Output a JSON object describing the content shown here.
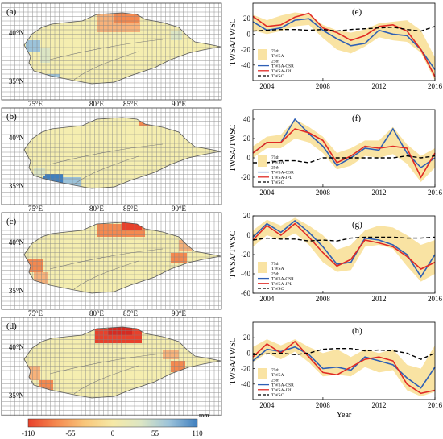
{
  "maps": {
    "panels": [
      {
        "label": "(a)",
        "kind": "a"
      },
      {
        "label": "(b)",
        "kind": "b"
      },
      {
        "label": "(c)",
        "kind": "c"
      },
      {
        "label": "(d)",
        "kind": "d"
      }
    ],
    "lat_ticks": [
      "40°N",
      "35°N"
    ],
    "lon_ticks": [
      "75°E",
      "80°E",
      "85°E",
      "90°E"
    ],
    "colorbar": {
      "unit": "mm",
      "ticks": [
        "-110",
        "-55",
        "0",
        "55",
        "110"
      ],
      "colors": [
        "#e8412b",
        "#f5894f",
        "#f8c67a",
        "#f6e9a6",
        "#dce6c4",
        "#9cc3da",
        "#3f7fbf"
      ]
    }
  },
  "chart_data": [
    {
      "type": "line",
      "panel": "(e)",
      "ylabel": "TWSA/TWSC",
      "x": [
        2003,
        2004,
        2005,
        2006,
        2007,
        2008,
        2009,
        2010,
        2011,
        2012,
        2013,
        2014,
        2015,
        2016
      ],
      "ylim": [
        -60,
        40
      ],
      "yticks": [
        -40,
        -20,
        0,
        20
      ],
      "xticks": [
        2004,
        2008,
        2012,
        2016
      ],
      "xlim": [
        2003,
        2016
      ],
      "legend": [
        "75th",
        "TWSA",
        "25th",
        "TWSA-CSR",
        "TWSA-JPL",
        "TWSC"
      ],
      "band": {
        "upper": [
          25,
          18,
          24,
          28,
          26,
          12,
          5,
          2,
          6,
          14,
          16,
          18,
          5,
          -30
        ],
        "lower": [
          5,
          0,
          4,
          10,
          12,
          -5,
          -20,
          -25,
          -16,
          -4,
          -8,
          -10,
          -24,
          -60
        ]
      },
      "series": [
        {
          "name": "TWSA-CSR",
          "values": [
            16,
            5,
            8,
            18,
            20,
            5,
            -6,
            -15,
            -12,
            5,
            0,
            -2,
            -20,
            -46
          ]
        },
        {
          "name": "TWSA-JPL",
          "values": [
            23,
            10,
            12,
            22,
            27,
            8,
            2,
            -8,
            -2,
            10,
            12,
            4,
            -20,
            -55
          ]
        },
        {
          "name": "TWSC",
          "values": [
            4,
            5,
            6,
            6,
            5,
            6,
            4,
            6,
            7,
            8,
            9,
            6,
            4,
            10
          ]
        }
      ]
    },
    {
      "type": "line",
      "panel": "(f)",
      "ylabel": "TWSA/TWSC",
      "x": [
        2003,
        2004,
        2005,
        2006,
        2007,
        2008,
        2009,
        2010,
        2011,
        2012,
        2013,
        2014,
        2015,
        2016
      ],
      "ylim": [
        -30,
        50
      ],
      "yticks": [
        -20,
        0,
        20,
        40
      ],
      "xticks": [
        2004,
        2008,
        2012,
        2016
      ],
      "xlim": [
        2003,
        2016
      ],
      "legend": [
        "75th",
        "TWSA",
        "25th",
        "TWSA-CSR",
        "TWSA-JPL",
        "TWSC"
      ],
      "band": {
        "upper": [
          12,
          22,
          24,
          40,
          32,
          22,
          5,
          10,
          18,
          18,
          32,
          14,
          2,
          10
        ],
        "lower": [
          0,
          10,
          10,
          20,
          16,
          5,
          -12,
          -8,
          2,
          0,
          4,
          -6,
          -25,
          -10
        ]
      },
      "series": [
        {
          "name": "TWSA-CSR",
          "values": [
            5,
            16,
            16,
            40,
            25,
            12,
            -8,
            0,
            10,
            8,
            30,
            5,
            -10,
            0
          ]
        },
        {
          "name": "TWSA-JPL",
          "values": [
            5,
            16,
            16,
            30,
            26,
            18,
            -5,
            2,
            12,
            10,
            12,
            10,
            -20,
            5
          ]
        },
        {
          "name": "TWSC",
          "values": [
            -5,
            -5,
            -3,
            -3,
            -5,
            0,
            0,
            0,
            0,
            0,
            0,
            2,
            0,
            2
          ]
        }
      ]
    },
    {
      "type": "line",
      "panel": "(g)",
      "ylabel": "TWSA/TWSC",
      "x": [
        2003,
        2004,
        2005,
        2006,
        2007,
        2008,
        2009,
        2010,
        2011,
        2012,
        2013,
        2014,
        2015,
        2016
      ],
      "ylim": [
        -60,
        20
      ],
      "yticks": [
        -60,
        -40,
        -20,
        0,
        20
      ],
      "xticks": [
        2004,
        2008,
        2012,
        2016
      ],
      "xlim": [
        2003,
        2016
      ],
      "legend": [
        "75th",
        "TWSA",
        "25th",
        "TWSA-CSR",
        "TWSA-JPL",
        "TWSC"
      ],
      "band": {
        "upper": [
          5,
          16,
          10,
          18,
          10,
          0,
          -15,
          -10,
          5,
          10,
          8,
          0,
          -10,
          -5
        ],
        "lower": [
          -12,
          0,
          -5,
          2,
          -10,
          -28,
          -38,
          -36,
          -12,
          -10,
          -14,
          -32,
          -48,
          -40
        ]
      },
      "series": [
        {
          "name": "TWSA-CSR",
          "values": [
            -2,
            12,
            3,
            15,
            3,
            -12,
            -30,
            -28,
            -3,
            -5,
            -10,
            -20,
            -43,
            -20
          ]
        },
        {
          "name": "TWSA-JPL",
          "values": [
            -5,
            10,
            0,
            12,
            -2,
            -18,
            -32,
            -25,
            -5,
            -8,
            -12,
            -22,
            -35,
            -28
          ]
        },
        {
          "name": "TWSC",
          "values": [
            -5,
            -3,
            -4,
            -4,
            -6,
            -5,
            -6,
            -3,
            -2,
            -2,
            -2,
            -3,
            -3,
            -2
          ]
        }
      ]
    },
    {
      "type": "line",
      "panel": "(h)",
      "ylabel": "TWSA/TWSC",
      "x": [
        2003,
        2004,
        2005,
        2006,
        2007,
        2008,
        2009,
        2010,
        2011,
        2012,
        2013,
        2014,
        2015,
        2016
      ],
      "ylim": [
        -60,
        40
      ],
      "yticks": [
        -40,
        -20,
        0,
        20
      ],
      "xticks": [
        2004,
        2008,
        2012,
        2016
      ],
      "xlim": [
        2003,
        2016
      ],
      "xlabel": "Year",
      "legend": [
        "75th",
        "TWSA",
        "25th",
        "TWSA-CSR",
        "TWSA-JPL",
        "TWSC"
      ],
      "band": {
        "upper": [
          8,
          18,
          10,
          18,
          8,
          0,
          5,
          -5,
          5,
          0,
          5,
          -15,
          -20,
          10
        ],
        "lower": [
          -12,
          0,
          -8,
          2,
          -12,
          -30,
          -28,
          -30,
          -18,
          -25,
          -22,
          -48,
          -56,
          -50
        ]
      },
      "series": [
        {
          "name": "TWSA-CSR",
          "values": [
            -10,
            5,
            2,
            8,
            -2,
            -20,
            -18,
            -22,
            -5,
            -10,
            -15,
            -32,
            -45,
            -18
          ]
        },
        {
          "name": "TWSA-JPL",
          "values": [
            -5,
            12,
            0,
            15,
            -5,
            -25,
            -28,
            -18,
            -8,
            -5,
            -10,
            -40,
            -52,
            -48
          ]
        },
        {
          "name": "TWSC",
          "values": [
            -2,
            -1,
            0,
            -2,
            0,
            5,
            6,
            6,
            3,
            4,
            3,
            0,
            -8,
            0
          ]
        }
      ]
    }
  ],
  "colors": {
    "band": "#f9e3a3",
    "csr": "#2e5fb5",
    "jpl": "#e02a25",
    "twsc": "#000000",
    "grid": "#808080",
    "basin": "#f5eeb0"
  }
}
